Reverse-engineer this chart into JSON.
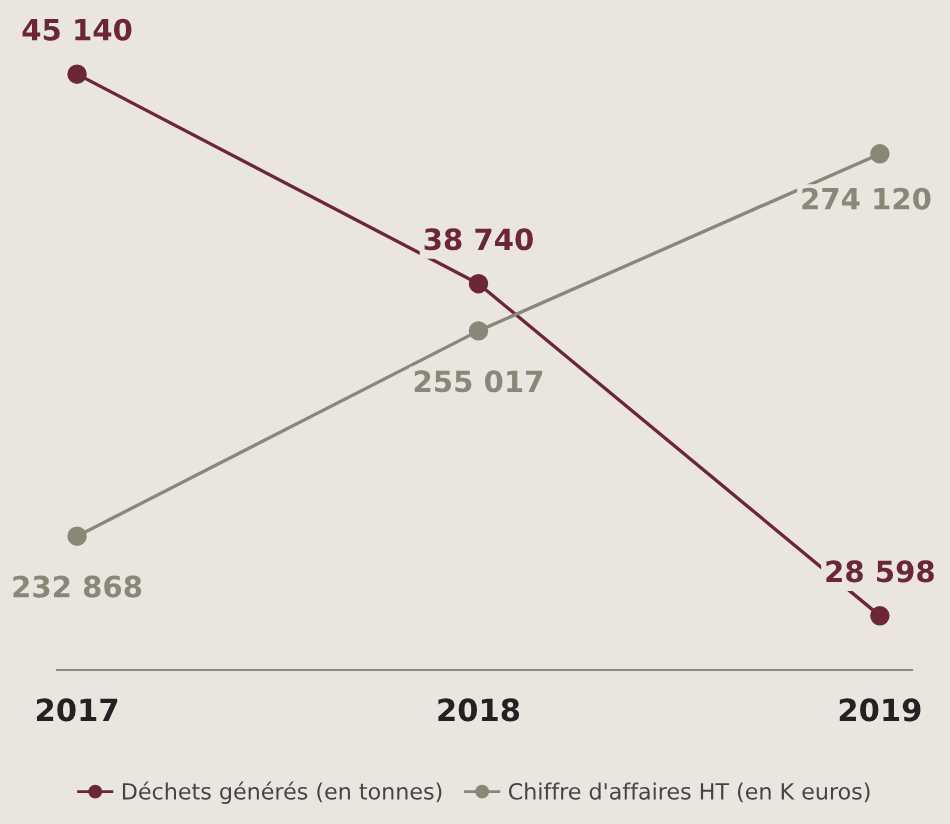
{
  "chart_data": {
    "type": "line",
    "categories": [
      "2017",
      "2018",
      "2019"
    ],
    "series": [
      {
        "name": "Déchets générés (en tonnes)",
        "color": "#6b2737",
        "values": [
          45140,
          38740,
          28598
        ],
        "value_labels": [
          "45 140",
          "38 740",
          "28 598"
        ]
      },
      {
        "name": "Chiffre d'affaires HT (en K euros)",
        "color": "#8a8778",
        "values": [
          232868,
          255017,
          274120
        ],
        "value_labels": [
          "232 868",
          "255 017",
          "274 120"
        ],
        "axis": "y2"
      }
    ],
    "tick_labels": "x",
    "marker": "circle",
    "line_style": "solid",
    "grid": false,
    "legend": "bottom"
  }
}
